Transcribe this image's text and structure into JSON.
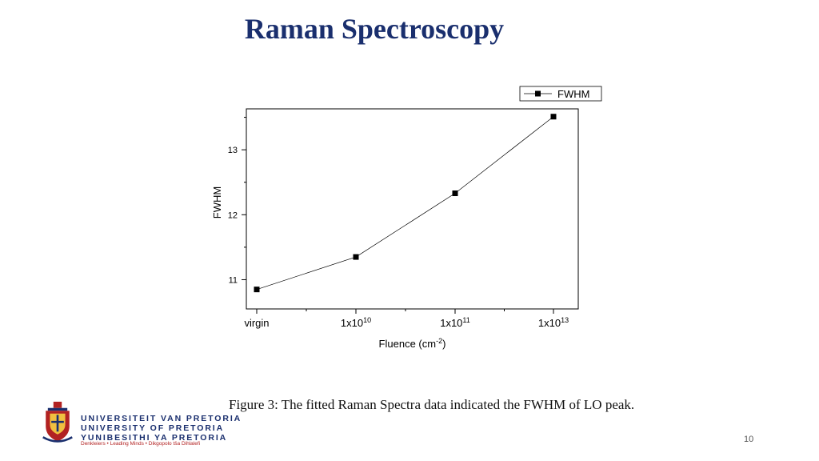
{
  "slide": {
    "title": "Raman Spectroscopy",
    "caption": "Figure 3: The fitted Raman Spectra data indicated the FWHM of LO peak.",
    "page_number": "10"
  },
  "logo": {
    "line1": "UNIVERSITEIT VAN PRETORIA",
    "line2": "UNIVERSITY OF PRETORIA",
    "line3": "YUNIBESITHI YA PRETORIA",
    "tagline": "Denkleiers • Leading Minds • Dikgopolo tša Dihlalefi",
    "colors": {
      "navy": "#1a2f6e",
      "red": "#b22222"
    }
  },
  "chart_data": {
    "type": "line",
    "categories": [
      {
        "base": "virgin",
        "exp": ""
      },
      {
        "base": "1x10",
        "exp": "10"
      },
      {
        "base": "1x10",
        "exp": "11"
      },
      {
        "base": "1x10",
        "exp": "13"
      }
    ],
    "series": [
      {
        "name": "FWHM",
        "values": [
          10.85,
          11.35,
          12.33,
          13.51
        ],
        "marker": "square",
        "color": "#000000"
      }
    ],
    "xlabel": {
      "text": "Fluence (cm",
      "sup": "-2",
      "suffix": ")"
    },
    "ylabel": "FWHM",
    "ylim": [
      10.55,
      13.63
    ],
    "yticks": [
      11,
      12,
      13
    ],
    "yticks_minor": [
      10.5,
      11.5,
      12.5,
      13.5
    ],
    "legend": {
      "position": "top-right",
      "label": "FWHM"
    },
    "grid": false
  }
}
